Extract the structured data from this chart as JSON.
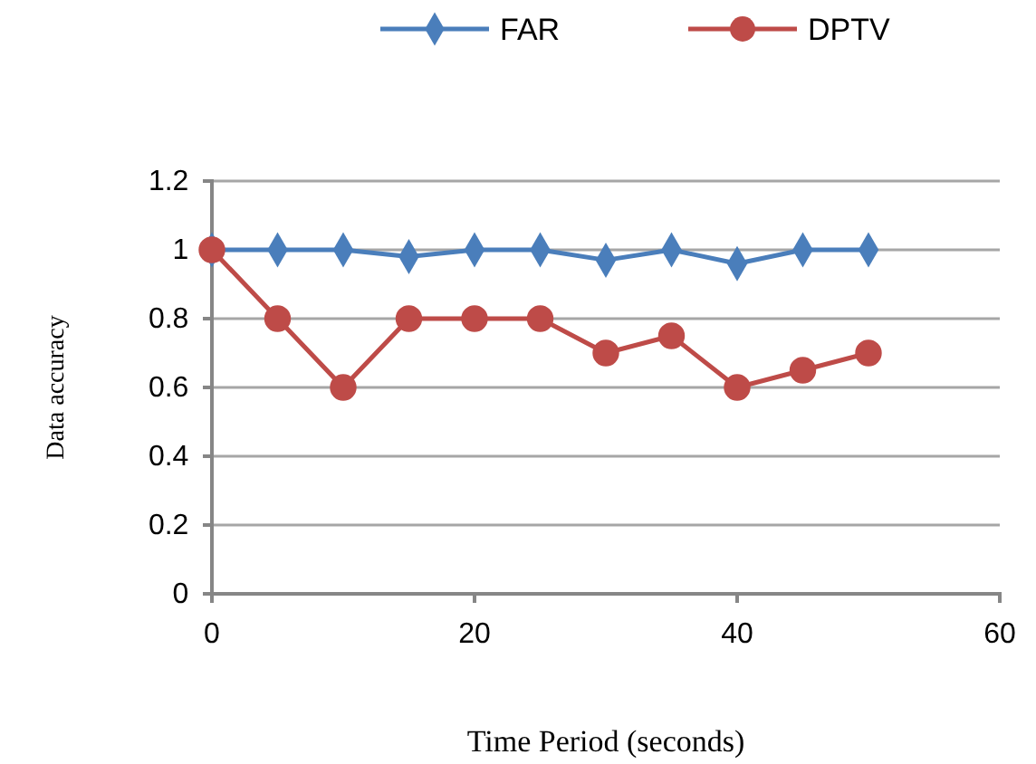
{
  "chart_data": {
    "type": "line",
    "xlabel": "Time Period (seconds)",
    "ylabel": "Data accuracy",
    "x": [
      0,
      5,
      10,
      15,
      20,
      25,
      30,
      35,
      40,
      45,
      50
    ],
    "series": [
      {
        "name": "FAR",
        "color": "#4a7ebb",
        "marker": "diamond",
        "values": [
          1,
          1,
          1,
          0.98,
          1,
          1,
          0.97,
          1,
          0.96,
          1,
          1
        ]
      },
      {
        "name": "DPTV",
        "color": "#be4b48",
        "marker": "circle",
        "values": [
          1,
          0.8,
          0.6,
          0.8,
          0.8,
          0.8,
          0.7,
          0.75,
          0.6,
          0.65,
          0.7
        ]
      }
    ],
    "xlim": [
      0,
      60
    ],
    "xticks": [
      0,
      20,
      40,
      60
    ],
    "ylim": [
      0,
      1.2
    ],
    "yticks": [
      0,
      0.2,
      0.4,
      0.6,
      0.8,
      1,
      1.2
    ],
    "grid": "y",
    "legend": "top",
    "line_style": "solid"
  }
}
